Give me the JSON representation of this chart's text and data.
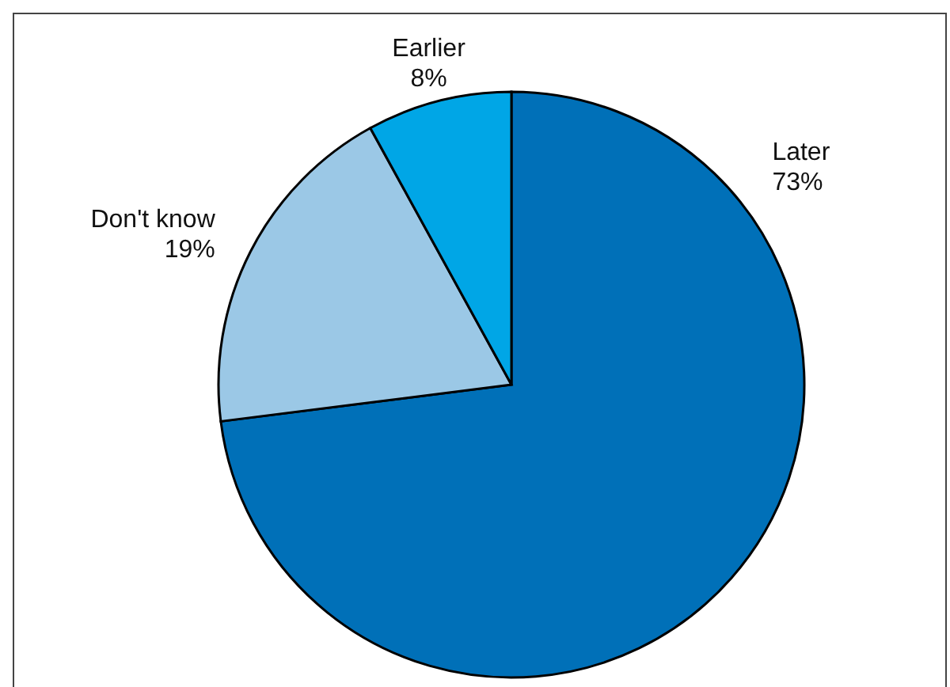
{
  "chart_data": {
    "type": "pie",
    "categories": [
      "Later",
      "Don't know",
      "Earlier"
    ],
    "values": [
      73,
      19,
      8
    ],
    "colors": [
      "#0070b8",
      "#9bc8e6",
      "#00a6e6"
    ],
    "value_labels": [
      "73%",
      "19%",
      "8%"
    ]
  }
}
